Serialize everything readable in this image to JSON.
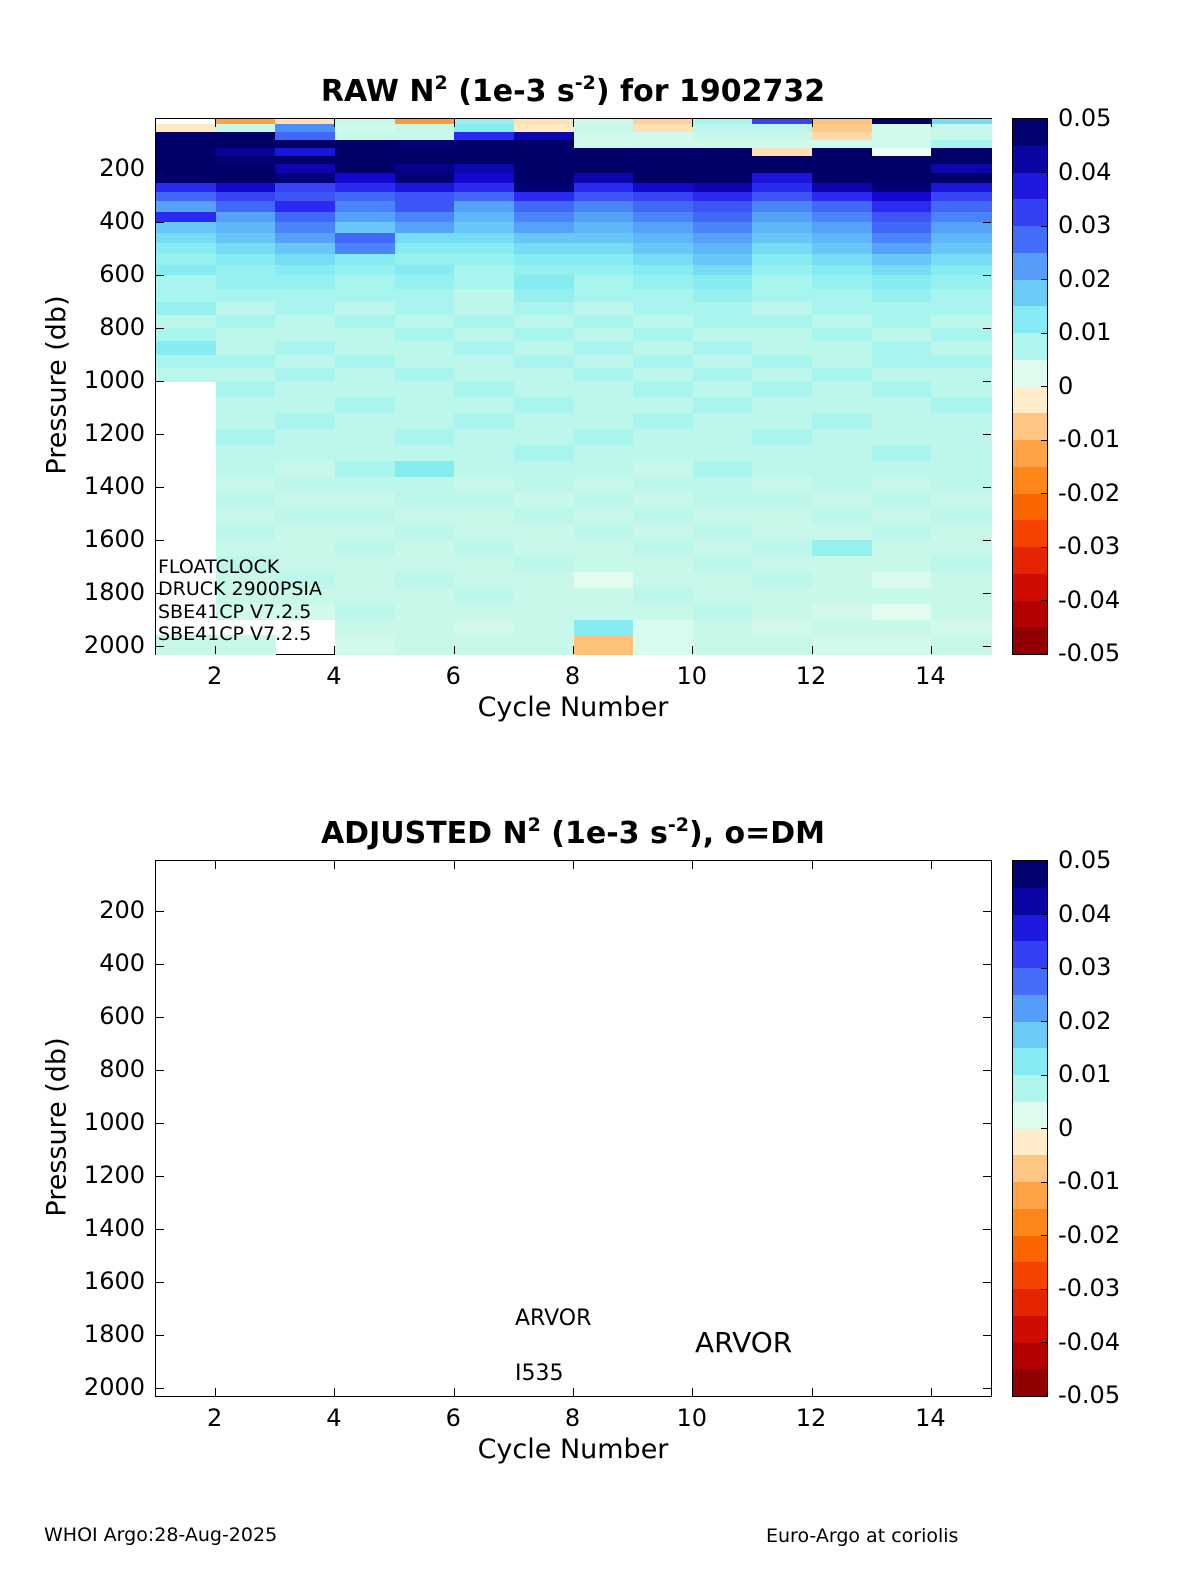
{
  "page": {
    "background": "#ffffff",
    "footer_left": "WHOI Argo:28-Aug-2025",
    "footer_right": "Euro-Argo at coriolis"
  },
  "colormap": {
    "description": "diverging red-white-blue, clim -0.05..0.05",
    "stops": [
      [
        -0.05,
        "#7f0000"
      ],
      [
        -0.04,
        "#c40000"
      ],
      [
        -0.03,
        "#f03000"
      ],
      [
        -0.02,
        "#ff7700"
      ],
      [
        -0.01,
        "#ffb25e"
      ],
      [
        -0.005,
        "#ffd9a6"
      ],
      [
        -0.002,
        "#fff0d2"
      ],
      [
        -0.0005,
        "#fffbee"
      ],
      [
        0.0005,
        "#f5fef7"
      ],
      [
        0.002,
        "#e2fcef"
      ],
      [
        0.005,
        "#c8f8ea"
      ],
      [
        0.008,
        "#a8f4ee"
      ],
      [
        0.012,
        "#86ecf2"
      ],
      [
        0.016,
        "#72d8f6"
      ],
      [
        0.02,
        "#5fb6f8"
      ],
      [
        0.025,
        "#4a84fa"
      ],
      [
        0.03,
        "#3d55f5"
      ],
      [
        0.035,
        "#2b2af0"
      ],
      [
        0.04,
        "#1208cf"
      ],
      [
        0.045,
        "#020277"
      ],
      [
        0.05,
        "#000068"
      ]
    ]
  },
  "chart_data": [
    {
      "type": "heatmap",
      "title_parts": [
        "RAW N",
        "2",
        " (1e-3 s",
        "-2",
        ") for 1902732"
      ],
      "xlabel": "Cycle Number",
      "ylabel": "Pressure (db)",
      "xlim": [
        1,
        15
      ],
      "ylim": [
        10,
        2030
      ],
      "clim": [
        -0.05,
        0.05
      ],
      "x_ticks": [
        2,
        4,
        6,
        8,
        10,
        12,
        14
      ],
      "y_ticks": [
        200,
        400,
        600,
        800,
        1000,
        1200,
        1400,
        1600,
        1800,
        2000
      ],
      "colorbar_ticks": [
        0.05,
        0.04,
        0.03,
        0.02,
        0.01,
        0,
        -0.01,
        -0.02,
        -0.03,
        -0.04,
        -0.05
      ],
      "colorbar_tick_labels": [
        "0.05",
        "0.04",
        "0.03",
        "0.02",
        "0.01",
        "0",
        "-0.01",
        "-0.02",
        "-0.03",
        "-0.04",
        "-0.05"
      ],
      "annotations": [
        "FLOATCLOCK",
        "DRUCK 2900PSIA",
        "SBE41CP V7.2.5",
        "SBE41CP V7.2.5"
      ],
      "cycle_edges": [
        1,
        2,
        3,
        4,
        5,
        6,
        7,
        8,
        9,
        10,
        11,
        12,
        13,
        14,
        15
      ],
      "pressure_edges": [
        10,
        30,
        60,
        90,
        120,
        150,
        180,
        215,
        250,
        285,
        320,
        360,
        400,
        440,
        480,
        520,
        560,
        600,
        650,
        700,
        750,
        800,
        850,
        900,
        950,
        1000,
        1060,
        1120,
        1180,
        1240,
        1300,
        1360,
        1420,
        1480,
        1540,
        1600,
        1660,
        1720,
        1780,
        1840,
        1900,
        1960,
        2030
      ],
      "values": [
        [
          null,
          -0.013,
          -0.004,
          0.005,
          -0.014,
          0.01,
          -0.004,
          0.004,
          -0.006,
          0.008,
          0.032,
          -0.008,
          0.05,
          0.015
        ],
        [
          -0.003,
          0.005,
          0.024,
          0.004,
          0.005,
          0.012,
          -0.003,
          0.005,
          -0.004,
          0.006,
          0.006,
          -0.007,
          0.004,
          0.005
        ],
        [
          0.05,
          0.05,
          0.028,
          0.005,
          0.005,
          0.035,
          0.042,
          0.004,
          0.004,
          0.005,
          0.005,
          -0.005,
          0.004,
          0.005
        ],
        [
          0.05,
          0.05,
          0.05,
          0.05,
          0.046,
          0.05,
          0.05,
          0.004,
          0.004,
          0.004,
          0.004,
          0.004,
          0.004,
          0.008
        ],
        [
          0.05,
          0.043,
          0.038,
          0.05,
          0.05,
          0.05,
          0.05,
          0.05,
          0.048,
          0.05,
          -0.004,
          0.05,
          0.001,
          0.05
        ],
        [
          0.05,
          0.046,
          0.05,
          0.05,
          0.05,
          0.05,
          0.05,
          0.05,
          0.05,
          0.05,
          0.05,
          0.05,
          0.05,
          0.05
        ],
        [
          0.05,
          0.05,
          0.042,
          0.05,
          0.044,
          0.042,
          0.05,
          0.05,
          0.05,
          0.05,
          0.05,
          0.05,
          0.05,
          0.042
        ],
        [
          0.05,
          0.05,
          0.045,
          0.04,
          0.045,
          0.04,
          0.05,
          0.042,
          0.05,
          0.05,
          0.038,
          0.05,
          0.05,
          0.05
        ],
        [
          0.035,
          0.04,
          0.032,
          0.035,
          0.038,
          0.035,
          0.045,
          0.035,
          0.04,
          0.042,
          0.035,
          0.042,
          0.045,
          0.038
        ],
        [
          0.028,
          0.032,
          0.03,
          0.028,
          0.03,
          0.028,
          0.035,
          0.03,
          0.032,
          0.035,
          0.03,
          0.035,
          0.04,
          0.032
        ],
        [
          0.022,
          0.028,
          0.035,
          0.025,
          0.03,
          0.022,
          0.028,
          0.025,
          0.028,
          0.03,
          0.025,
          0.028,
          0.035,
          0.028
        ],
        [
          0.035,
          0.022,
          0.028,
          0.022,
          0.025,
          0.02,
          0.025,
          0.022,
          0.025,
          0.028,
          0.022,
          0.025,
          0.03,
          0.025
        ],
        [
          0.018,
          0.02,
          0.025,
          0.018,
          0.022,
          0.018,
          0.022,
          0.02,
          0.022,
          0.025,
          0.02,
          0.022,
          0.028,
          0.022
        ],
        [
          0.015,
          0.018,
          0.022,
          0.028,
          0.015,
          0.015,
          0.018,
          0.018,
          0.02,
          0.022,
          0.018,
          0.02,
          0.025,
          0.02
        ],
        [
          0.012,
          0.015,
          0.018,
          0.025,
          0.012,
          0.012,
          0.015,
          0.015,
          0.018,
          0.02,
          0.015,
          0.018,
          0.022,
          0.018
        ],
        [
          0.01,
          0.012,
          0.015,
          0.012,
          0.01,
          0.01,
          0.012,
          0.012,
          0.015,
          0.018,
          0.012,
          0.015,
          0.018,
          0.015
        ],
        [
          0.012,
          0.01,
          0.012,
          0.01,
          0.012,
          0.008,
          0.01,
          0.01,
          0.012,
          0.015,
          0.01,
          0.012,
          0.015,
          0.012
        ],
        [
          0.008,
          0.01,
          0.01,
          0.008,
          0.01,
          0.008,
          0.012,
          0.008,
          0.01,
          0.012,
          0.008,
          0.01,
          0.012,
          0.01
        ],
        [
          0.008,
          0.008,
          0.008,
          0.008,
          0.008,
          0.006,
          0.01,
          0.008,
          0.008,
          0.01,
          0.008,
          0.008,
          0.01,
          0.008
        ],
        [
          0.01,
          0.006,
          0.008,
          0.006,
          0.008,
          0.006,
          0.008,
          0.006,
          0.008,
          0.008,
          0.006,
          0.008,
          0.008,
          0.008
        ],
        [
          0.006,
          0.008,
          0.006,
          0.008,
          0.006,
          0.008,
          0.006,
          0.008,
          0.006,
          0.008,
          0.008,
          0.006,
          0.008,
          0.006
        ],
        [
          0.008,
          0.006,
          0.006,
          0.006,
          0.008,
          0.006,
          0.008,
          0.006,
          0.008,
          0.006,
          0.006,
          0.008,
          0.006,
          0.008
        ],
        [
          0.012,
          0.006,
          0.008,
          0.006,
          0.006,
          0.008,
          0.006,
          0.008,
          0.006,
          0.008,
          0.006,
          0.006,
          0.008,
          0.006
        ],
        [
          0.008,
          0.008,
          0.006,
          0.008,
          0.006,
          0.006,
          0.008,
          0.006,
          0.008,
          0.006,
          0.008,
          0.006,
          0.008,
          0.008
        ],
        [
          0.006,
          0.006,
          0.008,
          0.006,
          0.008,
          0.006,
          0.006,
          0.008,
          0.006,
          0.008,
          0.006,
          0.008,
          0.006,
          0.006
        ],
        [
          null,
          0.008,
          0.006,
          0.006,
          0.006,
          0.008,
          0.006,
          0.006,
          0.008,
          0.006,
          0.008,
          0.006,
          0.008,
          0.006
        ],
        [
          null,
          0.006,
          0.006,
          0.008,
          0.006,
          0.006,
          0.008,
          0.006,
          0.006,
          0.008,
          0.006,
          0.006,
          0.006,
          0.008
        ],
        [
          null,
          0.006,
          0.008,
          0.006,
          0.006,
          0.008,
          0.006,
          0.006,
          0.008,
          0.006,
          0.006,
          0.008,
          0.006,
          0.006
        ],
        [
          null,
          0.008,
          0.006,
          0.006,
          0.008,
          0.006,
          0.006,
          0.008,
          0.006,
          0.006,
          0.008,
          0.006,
          0.006,
          0.006
        ],
        [
          null,
          0.006,
          0.006,
          0.006,
          0.006,
          0.006,
          0.008,
          0.006,
          0.006,
          0.006,
          0.006,
          0.006,
          0.008,
          0.006
        ],
        [
          null,
          0.006,
          0.005,
          0.008,
          0.012,
          0.006,
          0.006,
          0.006,
          0.005,
          0.008,
          0.006,
          0.006,
          0.006,
          0.006
        ],
        [
          null,
          0.005,
          0.006,
          0.006,
          0.006,
          0.005,
          0.006,
          0.005,
          0.006,
          0.006,
          0.005,
          0.006,
          0.005,
          0.006
        ],
        [
          null,
          0.006,
          0.005,
          0.005,
          0.006,
          0.006,
          0.005,
          0.006,
          0.005,
          0.006,
          0.006,
          0.005,
          0.006,
          0.005
        ],
        [
          null,
          0.005,
          0.006,
          0.006,
          0.005,
          0.005,
          0.006,
          0.005,
          0.006,
          0.005,
          0.005,
          0.006,
          0.005,
          0.006
        ],
        [
          null,
          0.006,
          0.005,
          0.005,
          0.006,
          0.005,
          0.005,
          0.006,
          0.005,
          0.006,
          0.005,
          0.005,
          0.006,
          0.005
        ],
        [
          null,
          0.005,
          0.005,
          0.006,
          0.005,
          0.006,
          0.005,
          0.005,
          0.006,
          0.005,
          0.006,
          0.01,
          0.005,
          0.005
        ],
        [
          null,
          0.006,
          0.005,
          0.005,
          0.005,
          0.005,
          0.006,
          0.005,
          0.005,
          0.006,
          0.005,
          0.005,
          0.005,
          0.006
        ],
        [
          null,
          0.005,
          0.006,
          0.005,
          0.006,
          0.005,
          0.005,
          0.002,
          0.005,
          0.005,
          0.006,
          0.005,
          0.003,
          0.005
        ],
        [
          null,
          0.005,
          0.005,
          0.005,
          0.005,
          0.006,
          0.005,
          0.005,
          0.006,
          0.005,
          0.005,
          0.005,
          0.005,
          0.005
        ],
        [
          null,
          0.004,
          0.004,
          0.006,
          0.005,
          0.005,
          0.005,
          0.005,
          0.005,
          0.006,
          0.005,
          0.004,
          0.002,
          0.005
        ],
        [
          null,
          null,
          null,
          0.005,
          0.005,
          0.004,
          0.005,
          0.012,
          0.003,
          0.005,
          0.004,
          0.005,
          0.005,
          0.004
        ],
        [
          0.005,
          0.005,
          null,
          0.004,
          0.005,
          0.005,
          0.005,
          -0.008,
          0.003,
          0.005,
          0.005,
          0.004,
          0.004,
          0.005
        ]
      ]
    },
    {
      "type": "heatmap",
      "title_parts": [
        "ADJUSTED N",
        "2",
        " (1e-3 s",
        "-2",
        "), o=DM"
      ],
      "xlabel": "Cycle Number",
      "ylabel": "Pressure (db)",
      "xlim": [
        1,
        15
      ],
      "ylim": [
        10,
        2030
      ],
      "clim": [
        -0.05,
        0.05
      ],
      "x_ticks": [
        2,
        4,
        6,
        8,
        10,
        12,
        14
      ],
      "y_ticks": [
        200,
        400,
        600,
        800,
        1000,
        1200,
        1400,
        1600,
        1800,
        2000
      ],
      "colorbar_ticks": [
        0.05,
        0.04,
        0.03,
        0.02,
        0.01,
        0,
        -0.01,
        -0.02,
        -0.03,
        -0.04,
        -0.05
      ],
      "colorbar_tick_labels": [
        "0.05",
        "0.04",
        "0.03",
        "0.02",
        "0.01",
        "0",
        "-0.01",
        "-0.02",
        "-0.03",
        "-0.04",
        "-0.05"
      ],
      "values": [],
      "annotations": [
        {
          "text": "ARVOR",
          "cycle": 7.0,
          "pressure": 1712
        },
        {
          "text": "ARVOR",
          "cycle": 10.1,
          "pressure": 1795
        },
        {
          "text": "I535",
          "cycle": 7.0,
          "pressure": 1912
        }
      ]
    }
  ]
}
